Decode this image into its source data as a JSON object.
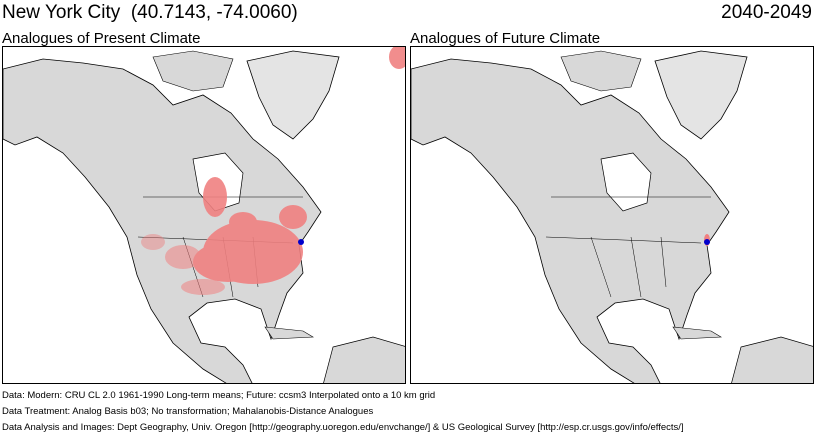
{
  "header": {
    "location": "New York City",
    "coords": "(40.7143, -74.0060)",
    "period": "2040-2049"
  },
  "panels": [
    {
      "title": "Analogues of Present Climate"
    },
    {
      "title": "Analogues of Future Climate"
    }
  ],
  "colors": {
    "land": "#d8d8d8",
    "analogue": "#f08080",
    "target": "#0000cc",
    "border": "#000000"
  },
  "footer": [
    "Data:  Modern: CRU CL 2.0 1961-1990 Long-term means; Future: ccsm3 Interpolated onto a 10 km grid",
    "Data Treatment:  Analog Basis b03; No transformation; Mahalanobis-Distance Analogues",
    "Data Analysis and Images:  Dept Geography, Univ. Oregon [http://geography.uoregon.edu/envchange/] & US Geological Survey [http://esp.cr.usgs.gov/info/effects/]"
  ]
}
